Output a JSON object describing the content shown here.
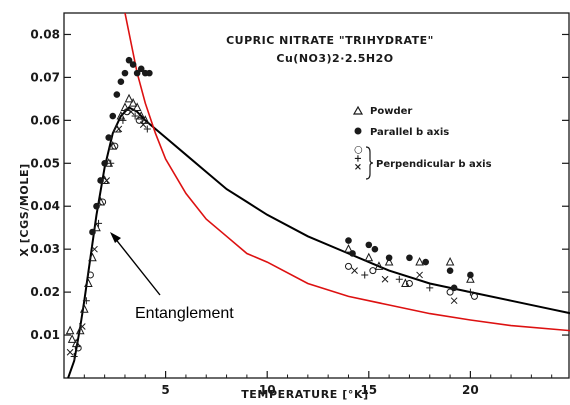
{
  "chart_data": {
    "type": "scatter",
    "title": "CUPRIC NITRATE \"TRIHYDRATE\"",
    "subtitle": "Cu(NO3)2·2.5H2O",
    "xlabel": "TEMPERATURE [°K]",
    "ylabel": "X [CGS/MOLE]",
    "xlim": [
      0,
      25
    ],
    "ylim": [
      0,
      0.085
    ],
    "x_ticks": [
      "5",
      "10",
      "15",
      "20"
    ],
    "y_ticks": [
      "0.01",
      "0.02",
      "0.03",
      "0.04",
      "0.05",
      "0.06",
      "0.07",
      "0.08"
    ],
    "legend_position": "right",
    "legend": {
      "powder": "Powder",
      "parallel": "Parallel b axis",
      "perpendicular": "Perpendicular b axis",
      "perp_symbols": "×+○"
    },
    "annotation": "Entanglement",
    "series": [
      {
        "name": "Powder",
        "marker": "triangle",
        "points": [
          [
            0.3,
            0.011
          ],
          [
            0.4,
            0.009
          ],
          [
            0.6,
            0.008
          ],
          [
            0.8,
            0.011
          ],
          [
            1.0,
            0.016
          ],
          [
            1.2,
            0.022
          ],
          [
            1.4,
            0.028
          ],
          [
            1.6,
            0.035
          ],
          [
            1.8,
            0.041
          ],
          [
            2.0,
            0.046
          ],
          [
            2.2,
            0.05
          ],
          [
            2.4,
            0.054
          ],
          [
            2.6,
            0.058
          ],
          [
            2.8,
            0.061
          ],
          [
            3.0,
            0.063
          ],
          [
            3.2,
            0.065
          ],
          [
            3.4,
            0.064
          ],
          [
            3.6,
            0.063
          ],
          [
            3.8,
            0.061
          ],
          [
            4.0,
            0.06
          ],
          [
            14.0,
            0.03
          ],
          [
            15.0,
            0.028
          ],
          [
            15.5,
            0.026
          ],
          [
            16.0,
            0.027
          ],
          [
            16.8,
            0.022
          ],
          [
            17.5,
            0.027
          ],
          [
            19.0,
            0.027
          ],
          [
            20.0,
            0.023
          ]
        ]
      },
      {
        "name": "Parallel b axis",
        "marker": "filled-circle",
        "points": [
          [
            1.4,
            0.034
          ],
          [
            1.6,
            0.04
          ],
          [
            1.8,
            0.046
          ],
          [
            2.0,
            0.05
          ],
          [
            2.2,
            0.056
          ],
          [
            2.4,
            0.061
          ],
          [
            2.6,
            0.066
          ],
          [
            2.8,
            0.069
          ],
          [
            3.0,
            0.071
          ],
          [
            3.2,
            0.074
          ],
          [
            3.4,
            0.073
          ],
          [
            3.6,
            0.071
          ],
          [
            3.8,
            0.072
          ],
          [
            4.0,
            0.071
          ],
          [
            4.2,
            0.071
          ],
          [
            14.0,
            0.032
          ],
          [
            14.2,
            0.029
          ],
          [
            15.0,
            0.031
          ],
          [
            15.3,
            0.03
          ],
          [
            16.0,
            0.028
          ],
          [
            17.0,
            0.028
          ],
          [
            17.8,
            0.027
          ],
          [
            19.0,
            0.025
          ],
          [
            19.2,
            0.021
          ],
          [
            20.0,
            0.024
          ]
        ]
      },
      {
        "name": "Perpendicular b axis",
        "marker": "open-circle/cross",
        "points": [
          [
            0.3,
            0.006
          ],
          [
            0.5,
            0.005
          ],
          [
            0.7,
            0.007
          ],
          [
            0.9,
            0.012
          ],
          [
            1.1,
            0.018
          ],
          [
            1.3,
            0.024
          ],
          [
            1.5,
            0.03
          ],
          [
            1.7,
            0.036
          ],
          [
            1.9,
            0.041
          ],
          [
            2.1,
            0.046
          ],
          [
            2.3,
            0.05
          ],
          [
            2.5,
            0.054
          ],
          [
            2.7,
            0.058
          ],
          [
            2.9,
            0.06
          ],
          [
            3.1,
            0.062
          ],
          [
            3.3,
            0.062
          ],
          [
            3.5,
            0.061
          ],
          [
            3.7,
            0.06
          ],
          [
            3.9,
            0.059
          ],
          [
            4.1,
            0.058
          ],
          [
            14.0,
            0.026
          ],
          [
            14.3,
            0.025
          ],
          [
            14.8,
            0.024
          ],
          [
            15.2,
            0.025
          ],
          [
            15.8,
            0.023
          ],
          [
            16.5,
            0.023
          ],
          [
            17.0,
            0.022
          ],
          [
            17.5,
            0.024
          ],
          [
            18.0,
            0.021
          ],
          [
            19.0,
            0.02
          ],
          [
            19.2,
            0.018
          ],
          [
            20.0,
            0.02
          ],
          [
            20.2,
            0.019
          ]
        ]
      },
      {
        "name": "",
        "marker": "line",
        "color": "#000000",
        "points": [
          [
            0.2,
            0.0
          ],
          [
            0.5,
            0.004
          ],
          [
            0.8,
            0.012
          ],
          [
            1.0,
            0.018
          ],
          [
            1.3,
            0.028
          ],
          [
            1.6,
            0.038
          ],
          [
            2.0,
            0.049
          ],
          [
            2.4,
            0.057
          ],
          [
            2.8,
            0.061
          ],
          [
            3.2,
            0.063
          ],
          [
            3.6,
            0.062
          ],
          [
            4.0,
            0.06
          ],
          [
            5.0,
            0.056
          ],
          [
            6.0,
            0.052
          ],
          [
            7.0,
            0.048
          ],
          [
            8.0,
            0.044
          ],
          [
            9.0,
            0.041
          ],
          [
            10.0,
            0.038
          ],
          [
            12.0,
            0.033
          ],
          [
            14.0,
            0.029
          ],
          [
            16.0,
            0.025
          ],
          [
            18.0,
            0.022
          ],
          [
            20.0,
            0.02
          ],
          [
            22.0,
            0.018
          ],
          [
            24.0,
            0.016
          ],
          [
            25.0,
            0.015
          ]
        ]
      },
      {
        "name": "",
        "marker": "line",
        "color": "#dd1111",
        "points": [
          [
            3.0,
            0.085
          ],
          [
            3.3,
            0.078
          ],
          [
            3.6,
            0.071
          ],
          [
            4.0,
            0.064
          ],
          [
            4.5,
            0.057
          ],
          [
            5.0,
            0.051
          ],
          [
            6.0,
            0.043
          ],
          [
            7.0,
            0.037
          ],
          [
            8.0,
            0.033
          ],
          [
            9.0,
            0.029
          ],
          [
            10.0,
            0.027
          ],
          [
            12.0,
            0.022
          ],
          [
            14.0,
            0.019
          ],
          [
            16.0,
            0.017
          ],
          [
            18.0,
            0.015
          ],
          [
            20.0,
            0.0135
          ],
          [
            22.0,
            0.0122
          ],
          [
            25.0,
            0.011
          ]
        ]
      }
    ]
  }
}
